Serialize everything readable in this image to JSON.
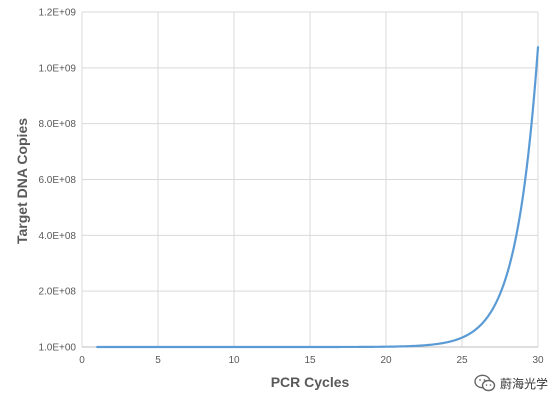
{
  "chart_data": {
    "type": "line",
    "title": "",
    "xlabel": "PCR Cycles",
    "ylabel": "Target DNA Copies",
    "xlim": [
      0,
      30
    ],
    "ylim": [
      1.0,
      1200000000
    ],
    "x_ticks": [
      0,
      5,
      10,
      15,
      20,
      25,
      30
    ],
    "x_tick_labels": [
      "0",
      "5",
      "10",
      "15",
      "20",
      "25",
      "30"
    ],
    "y_ticks": [
      0,
      200000000,
      400000000,
      600000000,
      800000000,
      1000000000,
      1200000000
    ],
    "y_tick_labels": [
      "1.0E+00",
      "2.0E+08",
      "4.0E+08",
      "6.0E+08",
      "8.0E+08",
      "1.0E+09",
      "1.2E+09"
    ],
    "grid": true,
    "legend": "none",
    "line_color": "#5b9bd5",
    "series": [
      {
        "x": [
          1,
          2,
          3,
          4,
          5,
          6,
          7,
          8,
          9,
          10,
          11,
          12,
          13,
          14,
          15,
          16,
          17,
          18,
          19,
          20,
          21,
          22,
          23,
          24,
          25,
          26,
          27,
          28,
          29,
          30
        ],
        "values": [
          2,
          4,
          8,
          16,
          32,
          64,
          128,
          256,
          512,
          1024,
          2048,
          4096,
          8192,
          16384,
          32768,
          65536,
          131072,
          262144,
          524288,
          1048576,
          2097152,
          4194304,
          8388608,
          16777216,
          33554432,
          67108864,
          134217728,
          268435456,
          536870912,
          1073741824
        ]
      }
    ]
  },
  "watermark": {
    "text": "蔚海光学",
    "icon": "wechat-icon"
  }
}
